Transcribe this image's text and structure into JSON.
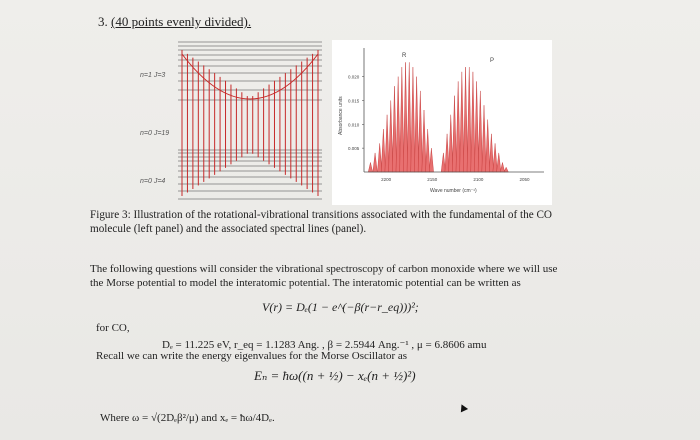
{
  "question": {
    "number": "3.",
    "points": "(40 points evenly divided)."
  },
  "left_panel": {
    "labels": [
      "n=1 J=3",
      "n=0 J=19",
      "n=0 J=4"
    ]
  },
  "chart_data": {
    "type": "bar",
    "title": "",
    "ylabel": "Absorbance units",
    "xlabel": "Wave number (cm⁻¹)",
    "yticks": [
      "0.020",
      "0.015",
      "0.010",
      "0.005"
    ],
    "xticks": [
      "2200",
      "2150",
      "2100",
      "2050"
    ],
    "branch_labels": [
      "R",
      "P"
    ],
    "ylim": [
      0,
      0.026
    ],
    "xlim": [
      2225,
      2030
    ],
    "series": [
      {
        "values": [
          [
            2218,
            0.002
          ],
          [
            2213,
            0.004
          ],
          [
            2208,
            0.006
          ],
          [
            2204,
            0.009
          ],
          [
            2200,
            0.012
          ],
          [
            2196,
            0.015
          ],
          [
            2192,
            0.018
          ],
          [
            2188,
            0.02
          ],
          [
            2184,
            0.022
          ],
          [
            2180,
            0.023
          ],
          [
            2176,
            0.023
          ],
          [
            2172,
            0.022
          ],
          [
            2168,
            0.02
          ],
          [
            2164,
            0.017
          ],
          [
            2160,
            0.013
          ],
          [
            2156,
            0.009
          ],
          [
            2152,
            0.005
          ],
          [
            2139,
            0.004
          ],
          [
            2135,
            0.008
          ],
          [
            2131,
            0.012
          ],
          [
            2127,
            0.016
          ],
          [
            2123,
            0.019
          ],
          [
            2119,
            0.021
          ],
          [
            2115,
            0.022
          ],
          [
            2111,
            0.022
          ],
          [
            2107,
            0.021
          ],
          [
            2103,
            0.019
          ],
          [
            2099,
            0.017
          ],
          [
            2095,
            0.014
          ],
          [
            2091,
            0.011
          ],
          [
            2087,
            0.008
          ],
          [
            2083,
            0.006
          ],
          [
            2079,
            0.004
          ],
          [
            2075,
            0.002
          ],
          [
            2071,
            0.001
          ]
        ]
      }
    ]
  },
  "caption": "Figure 3: Illustration of the rotational-vibrational transitions associated with the fundamental of the CO molecule (left panel) and the associated spectral lines (panel).",
  "paragraph": "The following questions will consider the vibrational spectroscopy of carbon monoxide where we will use the Morse potential to model the interatomic potential. The interatomic potential can be written as",
  "equation_morse": "V(r) = Dₑ(1 − e^(−β(r−r_eq)))²;",
  "for_co": "for CO,",
  "parameters": "Dₑ = 11.225 eV, r_eq = 1.1283 Ang. , β = 2.5944 Ang.⁻¹ , μ = 6.8606 amu",
  "recall": "Recall we can write the energy eigenvalues for the Morse Oscillator as",
  "equation_energy": "Eₙ = ħω((n + ½) − xₑ(n + ½)²)",
  "where_text": "Where ω = √(2Dₑβ²/μ) and xₑ = ħω/4Dₑ."
}
